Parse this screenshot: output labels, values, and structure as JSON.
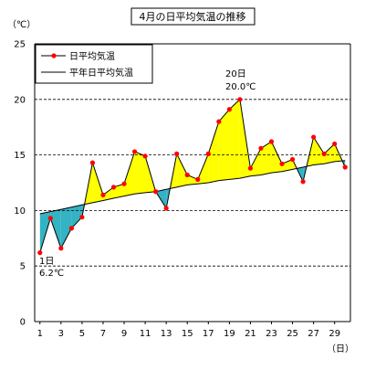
{
  "chart_data": {
    "type": "line",
    "title": "4月の日平均気温の推移",
    "ylabel": "（℃）",
    "xlabel": "（日）",
    "ylim": [
      0,
      25
    ],
    "y_ticks": [
      0,
      5,
      10,
      15,
      20,
      25
    ],
    "x_ticks": [
      1,
      3,
      5,
      7,
      9,
      11,
      13,
      15,
      17,
      19,
      21,
      23,
      25,
      27,
      29
    ],
    "xlim": [
      1,
      30
    ],
    "grid": "horizontal dashed at 5, 10, 15, 20",
    "legend_position": "top-left",
    "x": [
      1,
      2,
      3,
      4,
      5,
      6,
      7,
      8,
      9,
      10,
      11,
      12,
      13,
      14,
      15,
      16,
      17,
      18,
      19,
      20,
      21,
      22,
      23,
      24,
      25,
      26,
      27,
      28,
      29,
      30
    ],
    "series": [
      {
        "name": "日平均気温",
        "color": "#ff0000",
        "line_color": "#000000",
        "values": [
          6.2,
          9.3,
          6.6,
          8.4,
          9.4,
          14.3,
          11.4,
          12.1,
          12.4,
          15.3,
          14.9,
          11.7,
          10.2,
          15.1,
          13.2,
          12.8,
          15.1,
          18.0,
          19.1,
          20.0,
          13.8,
          15.6,
          16.2,
          14.2,
          14.6,
          12.6,
          16.6,
          15.1,
          16.0,
          13.9
        ]
      },
      {
        "name": "平年日平均気温",
        "color": "#000000",
        "values": [
          9.7,
          9.9,
          10.1,
          10.3,
          10.5,
          10.7,
          10.9,
          11.1,
          11.3,
          11.5,
          11.6,
          11.7,
          11.9,
          12.1,
          12.3,
          12.4,
          12.5,
          12.7,
          12.8,
          12.9,
          13.1,
          13.2,
          13.4,
          13.5,
          13.7,
          13.9,
          14.1,
          14.2,
          14.4,
          14.5
        ]
      }
    ],
    "fill_above_color": "#ffff00",
    "fill_below_color": "#33b3c4",
    "annotations": [
      {
        "day_text": "20日",
        "value_text": "20.0℃",
        "x": 20,
        "y": 20.0
      },
      {
        "day_text": "1日",
        "value_text": "6.2℃",
        "x": 1,
        "y": 6.2
      }
    ]
  }
}
